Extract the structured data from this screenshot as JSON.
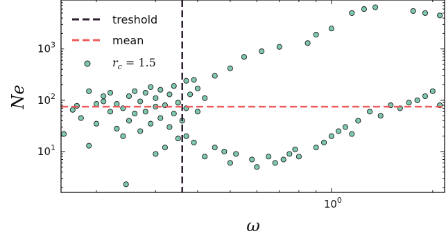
{
  "chart_data": {
    "type": "scatter",
    "xlabel": "ω",
    "ylabel": "Ne",
    "xscale": "log",
    "yscale": "log",
    "xlim": [
      0.157,
      2.17
    ],
    "ylim": [
      1.6,
      9000
    ],
    "x_ticks": [
      {
        "value": 1.0,
        "base": "10",
        "exp": "0"
      }
    ],
    "y_ticks": [
      {
        "value": 10,
        "base": "10",
        "exp": "1"
      },
      {
        "value": 100,
        "base": "10",
        "exp": "2"
      },
      {
        "value": 1000,
        "base": "10",
        "exp": "3"
      }
    ],
    "threshold_x": 0.36,
    "mean_y": 75,
    "legend": {
      "placement": "upper-left",
      "entries": [
        {
          "label": "treshold",
          "style": "dashed-line",
          "color": "#2b1d2e"
        },
        {
          "label": "mean",
          "style": "dashed-line",
          "color": "#ee5a5a"
        },
        {
          "label": "r_c = 1.5",
          "base": "r",
          "sub": "c",
          "rest": " = 1.5",
          "style": "marker",
          "color": "#7ec8ae"
        }
      ]
    },
    "colors": {
      "marker_fill": "#7ec8ae",
      "marker_edge": "#1a1a1a",
      "threshold": "#2b1d2e",
      "mean": "#ee5a5a"
    },
    "series": [
      {
        "points": [
          [
            0.16,
            22
          ],
          [
            0.17,
            65
          ],
          [
            0.175,
            78
          ],
          [
            0.18,
            45
          ],
          [
            0.19,
            13
          ],
          [
            0.19,
            150
          ],
          [
            0.2,
            35
          ],
          [
            0.2,
            85
          ],
          [
            0.21,
            120
          ],
          [
            0.21,
            95
          ],
          [
            0.22,
            60
          ],
          [
            0.22,
            140
          ],
          [
            0.23,
            28
          ],
          [
            0.23,
            85
          ],
          [
            0.24,
            20
          ],
          [
            0.24,
            70
          ],
          [
            0.245,
            2.3
          ],
          [
            0.25,
            120
          ],
          [
            0.25,
            40
          ],
          [
            0.26,
            55
          ],
          [
            0.26,
            150
          ],
          [
            0.27,
            25
          ],
          [
            0.27,
            95
          ],
          [
            0.28,
            140
          ],
          [
            0.28,
            60
          ],
          [
            0.29,
            180
          ],
          [
            0.29,
            35
          ],
          [
            0.3,
            9
          ],
          [
            0.3,
            110
          ],
          [
            0.3,
            75
          ],
          [
            0.31,
            45
          ],
          [
            0.31,
            160
          ],
          [
            0.32,
            12
          ],
          [
            0.32,
            80
          ],
          [
            0.33,
            30
          ],
          [
            0.33,
            130
          ],
          [
            0.34,
            55
          ],
          [
            0.34,
            190
          ],
          [
            0.35,
            18
          ],
          [
            0.35,
            90
          ],
          [
            0.36,
            40
          ],
          [
            0.37,
            240
          ],
          [
            0.37,
            20
          ],
          [
            0.37,
            70
          ],
          [
            0.38,
            130
          ],
          [
            0.39,
            250
          ],
          [
            0.39,
            15
          ],
          [
            0.4,
            60
          ],
          [
            0.4,
            170
          ],
          [
            0.42,
            8
          ],
          [
            0.42,
            110
          ],
          [
            0.45,
            300
          ],
          [
            0.45,
            12
          ],
          [
            0.48,
            10
          ],
          [
            0.5,
            6
          ],
          [
            0.5,
            420
          ],
          [
            0.52,
            9
          ],
          [
            0.55,
            700
          ],
          [
            0.58,
            7
          ],
          [
            0.6,
            5
          ],
          [
            0.62,
            900
          ],
          [
            0.65,
            8
          ],
          [
            0.68,
            6
          ],
          [
            0.7,
            1100
          ],
          [
            0.72,
            7
          ],
          [
            0.75,
            9
          ],
          [
            0.78,
            11
          ],
          [
            0.8,
            8
          ],
          [
            0.85,
            1300
          ],
          [
            0.9,
            12
          ],
          [
            0.95,
            15
          ],
          [
            1.0,
            20
          ],
          [
            1.05,
            25
          ],
          [
            1.1,
            30
          ],
          [
            1.15,
            22
          ],
          [
            1.2,
            40
          ],
          [
            1.3,
            60
          ],
          [
            1.4,
            50
          ],
          [
            1.5,
            80
          ],
          [
            1.6,
            70
          ],
          [
            1.7,
            90
          ],
          [
            1.8,
            100
          ],
          [
            1.9,
            120
          ],
          [
            2.0,
            150
          ],
          [
            2.1,
            80
          ],
          [
            1.75,
            5500
          ],
          [
            1.9,
            5000
          ],
          [
            2.1,
            4500
          ],
          [
            1.35,
            6500
          ],
          [
            1.25,
            6000
          ],
          [
            1.15,
            5000
          ],
          [
            1.0,
            2500
          ],
          [
            0.9,
            1900
          ]
        ]
      }
    ]
  }
}
